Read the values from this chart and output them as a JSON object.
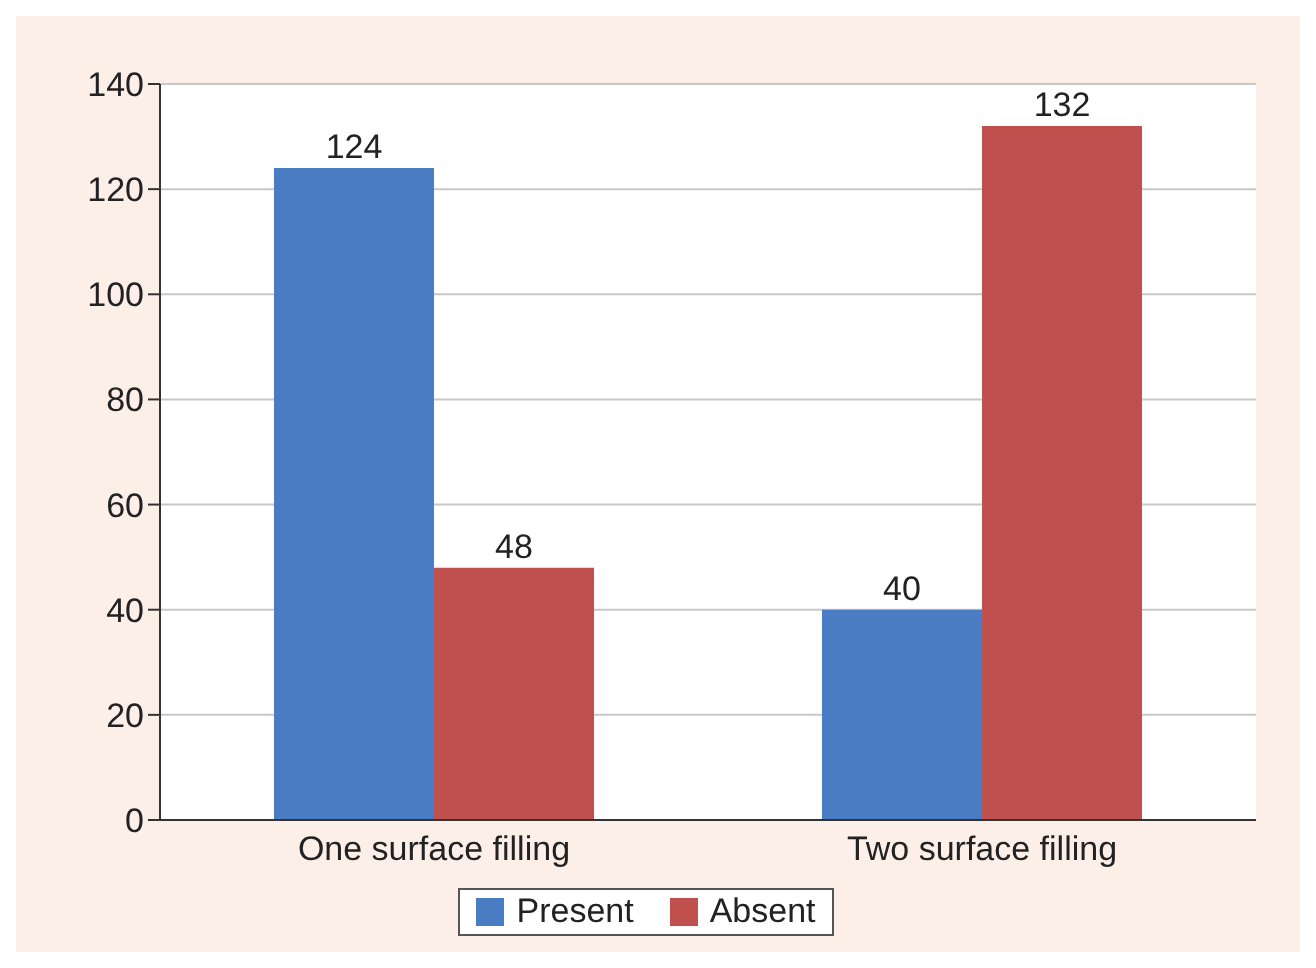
{
  "chart_data": {
    "type": "bar",
    "categories": [
      "One surface filling",
      "Two surface filling"
    ],
    "series": [
      {
        "name": "Present",
        "color": "#4a7cc4",
        "values": [
          124,
          40
        ]
      },
      {
        "name": "Absent",
        "color": "#c0504d",
        "values": [
          48,
          132
        ]
      }
    ],
    "ylim": [
      0,
      140
    ],
    "yticks": [
      0,
      20,
      40,
      60,
      80,
      100,
      120,
      140
    ],
    "grid": "y",
    "legend": "bottom",
    "data_labels": true
  }
}
